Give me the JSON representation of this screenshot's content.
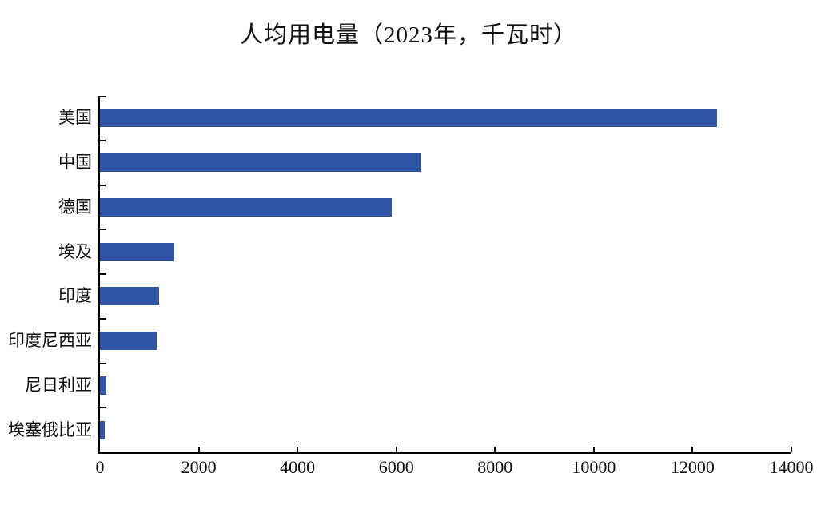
{
  "title": "人均用电量（2023年，千瓦时）",
  "colors": {
    "bar": "#2F55A5",
    "axis": "#000000",
    "background": "#FFFFFF",
    "text": "#111111"
  },
  "chart_data": {
    "type": "bar",
    "orientation": "horizontal",
    "title": "人均用电量（2023年，千瓦时）",
    "categories": [
      "美国",
      "中国",
      "德国",
      "埃及",
      "印度",
      "印度尼西亚",
      "尼日利亚",
      "埃塞俄比亚"
    ],
    "values": [
      12500,
      6500,
      5900,
      1500,
      1200,
      1150,
      130,
      100
    ],
    "xlabel": "",
    "ylabel": "",
    "xlim": [
      0,
      14000
    ],
    "x_ticks": [
      0,
      2000,
      4000,
      6000,
      8000,
      10000,
      12000,
      14000
    ],
    "grid": false,
    "legend_position": "none",
    "bar_color": "#2F55A5"
  }
}
